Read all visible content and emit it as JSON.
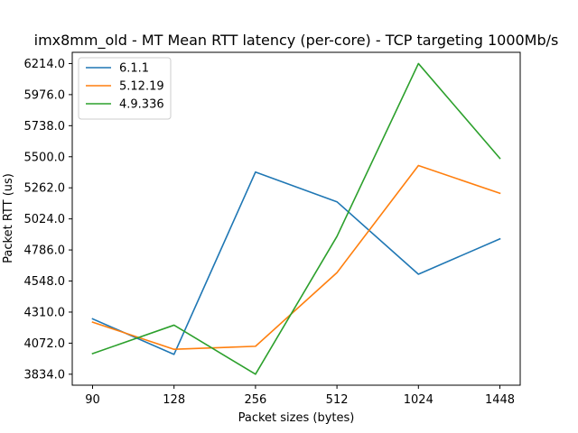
{
  "chart_data": {
    "type": "line",
    "title": "imx8mm_old - MT Mean RTT latency (per-core) - TCP targeting 1000Mb/s",
    "xlabel": "Packet sizes (bytes)",
    "ylabel": "Packet RTT (us)",
    "categories": [
      "90",
      "128",
      "256",
      "512",
      "1024",
      "1448"
    ],
    "yticks": [
      "3834.0",
      "4072.0",
      "4310.0",
      "4548.0",
      "4786.0",
      "5024.0",
      "5262.0",
      "5500.0",
      "5738.0",
      "5976.0",
      "6214.0"
    ],
    "ylim": [
      3750,
      6300
    ],
    "grid": false,
    "legend_position": "top-left",
    "series": [
      {
        "name": "6.1.1",
        "color": "#1f77b4",
        "values": [
          4258,
          3986,
          5383,
          5155,
          4600,
          4871
        ]
      },
      {
        "name": "5.12.19",
        "color": "#ff7f0e",
        "values": [
          4233,
          4025,
          4048,
          4612,
          5433,
          5220
        ]
      },
      {
        "name": "4.9.336",
        "color": "#2ca02c",
        "values": [
          3992,
          4210,
          3834,
          4890,
          6214,
          5488
        ]
      }
    ]
  }
}
